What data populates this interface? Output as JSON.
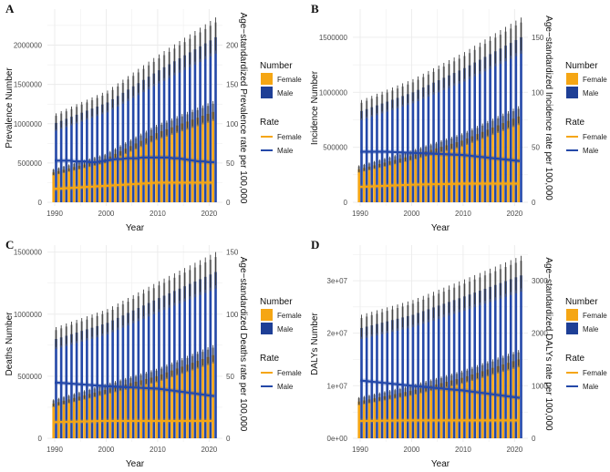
{
  "chart_data": [
    {
      "type": "bar",
      "panel_label": "A",
      "xlabel": "Year",
      "ylabel": "Prevalence Number",
      "ylabel_right": "Age−standardized Prevalence rate per 100,000",
      "x": [
        1990,
        1991,
        1992,
        1993,
        1994,
        1995,
        1996,
        1997,
        1998,
        1999,
        2000,
        2001,
        2002,
        2003,
        2004,
        2005,
        2006,
        2007,
        2008,
        2009,
        2010,
        2011,
        2012,
        2013,
        2014,
        2015,
        2016,
        2017,
        2018,
        2019,
        2020,
        2021
      ],
      "x_ticks": [
        "1990",
        "2000",
        "2010",
        "2020"
      ],
      "ylim": [
        0,
        2400000
      ],
      "y_ticks": [
        0,
        500000,
        1000000,
        1500000,
        2000000
      ],
      "y_tick_labels": [
        "0",
        "500000",
        "1000000",
        "1500000",
        "2000000"
      ],
      "rate_scale": 10000,
      "y_right_ticks": [
        0,
        50,
        100,
        150,
        200
      ],
      "y_right_tick_labels": [
        "0",
        "50",
        "100",
        "150",
        "200"
      ],
      "number_series": [
        {
          "name": "Female",
          "values": [
            380000,
            397000,
            414000,
            431000,
            448000,
            465000,
            482000,
            499000,
            516000,
            533000,
            550000,
            583000,
            616000,
            649000,
            682000,
            715000,
            748000,
            781000,
            814000,
            847000,
            880000,
            905000,
            929000,
            954000,
            978000,
            1003000,
            1027000,
            1052000,
            1076000,
            1101000,
            1125000,
            1150000
          ]
        },
        {
          "name": "Male",
          "values": [
            1010000,
            1036000,
            1062000,
            1088000,
            1114000,
            1140000,
            1166000,
            1192000,
            1218000,
            1244000,
            1270000,
            1311000,
            1352000,
            1393000,
            1434000,
            1475000,
            1516000,
            1557000,
            1598000,
            1639000,
            1680000,
            1718000,
            1756000,
            1794000,
            1832000,
            1870000,
            1908000,
            1946000,
            1984000,
            2022000,
            2060000,
            2100000
          ]
        }
      ],
      "rate_series": [
        {
          "name": "Female",
          "values": [
            17,
            17.4,
            17.8,
            18.2,
            18.6,
            19,
            19.4,
            19.8,
            20.2,
            20.6,
            21,
            21.4,
            21.8,
            22.2,
            22.6,
            23,
            23.4,
            23.8,
            24.2,
            24.6,
            25,
            25,
            25,
            25,
            25,
            25,
            25,
            25,
            25,
            25,
            25,
            25
          ]
        },
        {
          "name": "Male",
          "values": [
            53,
            53,
            53,
            53,
            52,
            52,
            52,
            51,
            51,
            52,
            53,
            54,
            55,
            55,
            56,
            56,
            56,
            57,
            57,
            57,
            57,
            57,
            57,
            56,
            56,
            55,
            54,
            53,
            52,
            52,
            51,
            51
          ]
        }
      ]
    },
    {
      "type": "bar",
      "panel_label": "B",
      "xlabel": "Year",
      "ylabel": "Incidence Number",
      "ylabel_right": "Age−standardized Incidence rate per 100,000",
      "x": [
        1990,
        1991,
        1992,
        1993,
        1994,
        1995,
        1996,
        1997,
        1998,
        1999,
        2000,
        2001,
        2002,
        2003,
        2004,
        2005,
        2006,
        2007,
        2008,
        2009,
        2010,
        2011,
        2012,
        2013,
        2014,
        2015,
        2016,
        2017,
        2018,
        2019,
        2020,
        2021
      ],
      "x_ticks": [
        "1990",
        "2000",
        "2010",
        "2020"
      ],
      "ylim": [
        0,
        1715000
      ],
      "y_ticks": [
        0,
        500000,
        1000000,
        1500000
      ],
      "y_tick_labels": [
        "0",
        "500000",
        "1000000",
        "1500000"
      ],
      "rate_scale": 10000,
      "y_right_ticks": [
        0,
        50,
        100,
        150
      ],
      "y_right_tick_labels": [
        "0",
        "50",
        "100",
        "150"
      ],
      "number_series": [
        {
          "name": "Female",
          "values": [
            300000,
            312000,
            324000,
            336000,
            348000,
            360000,
            372000,
            384000,
            396000,
            408000,
            420000,
            434000,
            448000,
            462000,
            476000,
            490000,
            504000,
            518000,
            532000,
            546000,
            560000,
            580000,
            600000,
            620000,
            640000,
            660000,
            680000,
            700000,
            720000,
            740000,
            760000,
            780000
          ]
        },
        {
          "name": "Male",
          "values": [
            830000,
            847000,
            864000,
            881000,
            898000,
            915000,
            932000,
            949000,
            966000,
            983000,
            1000000,
            1022000,
            1044000,
            1066000,
            1088000,
            1110000,
            1132000,
            1154000,
            1176000,
            1198000,
            1220000,
            1245000,
            1271000,
            1296000,
            1322000,
            1347000,
            1373000,
            1398000,
            1424000,
            1449000,
            1475000,
            1500000
          ]
        }
      ],
      "rate_series": [
        {
          "name": "Female",
          "values": [
            14,
            14.2,
            14.4,
            14.6,
            14.8,
            15,
            15.2,
            15.4,
            15.6,
            15.8,
            16,
            16.1,
            16.2,
            16.3,
            16.4,
            16.5,
            16.6,
            16.7,
            16.8,
            16.9,
            17,
            17,
            17,
            17,
            17,
            17,
            17,
            17,
            17,
            17,
            17,
            17
          ]
        },
        {
          "name": "Male",
          "values": [
            46,
            46,
            46,
            46,
            46,
            46,
            45.8,
            45.6,
            45.4,
            45.2,
            45,
            44.8,
            44.6,
            44.4,
            44.2,
            44,
            43.8,
            43.6,
            43.4,
            43.2,
            43,
            42.5,
            42,
            41.5,
            41,
            40.5,
            40,
            39.5,
            39,
            38.5,
            38,
            37.5
          ]
        }
      ]
    },
    {
      "type": "bar",
      "panel_label": "C",
      "xlabel": "Year",
      "ylabel": "Deaths Number",
      "ylabel_right": "Age−standardized Deaths rate per 100,000",
      "x": [
        1990,
        1991,
        1992,
        1993,
        1994,
        1995,
        1996,
        1997,
        1998,
        1999,
        2000,
        2001,
        2002,
        2003,
        2004,
        2005,
        2006,
        2007,
        2008,
        2009,
        2010,
        2011,
        2012,
        2013,
        2014,
        2015,
        2016,
        2017,
        2018,
        2019,
        2020,
        2021
      ],
      "x_ticks": [
        "1990",
        "2000",
        "2010",
        "2020"
      ],
      "ylim": [
        0,
        1520000
      ],
      "y_ticks": [
        0,
        500000,
        1000000,
        1500000
      ],
      "y_tick_labels": [
        "0",
        "500000",
        "1000000",
        "1500000"
      ],
      "rate_scale": 10000,
      "y_right_ticks": [
        0,
        50,
        100,
        150
      ],
      "y_right_tick_labels": [
        "0",
        "50",
        "100",
        "150"
      ],
      "number_series": [
        {
          "name": "Female",
          "values": [
            280000,
            291000,
            302000,
            313000,
            324000,
            335000,
            346000,
            357000,
            368000,
            379000,
            390000,
            401000,
            412000,
            423000,
            434000,
            445000,
            456000,
            467000,
            478000,
            489000,
            500000,
            515000,
            531000,
            546000,
            562000,
            577000,
            593000,
            608000,
            624000,
            639000,
            655000,
            670000
          ]
        },
        {
          "name": "Male",
          "values": [
            800000,
            813000,
            826000,
            839000,
            852000,
            865000,
            878000,
            891000,
            904000,
            917000,
            930000,
            950000,
            970000,
            990000,
            1010000,
            1030000,
            1050000,
            1070000,
            1090000,
            1110000,
            1130000,
            1149000,
            1168000,
            1187000,
            1206000,
            1225000,
            1244000,
            1263000,
            1282000,
            1301000,
            1320000,
            1340000
          ]
        }
      ],
      "rate_series": [
        {
          "name": "Female",
          "values": [
            13,
            13.1,
            13.2,
            13.3,
            13.4,
            13.5,
            13.6,
            13.7,
            13.8,
            13.9,
            14,
            14,
            14,
            14,
            14,
            14,
            14,
            14,
            14,
            14,
            14,
            14,
            14,
            14,
            14,
            14,
            14,
            14,
            14,
            14,
            14,
            14
          ]
        },
        {
          "name": "Male",
          "values": [
            45,
            44.7,
            44.4,
            44.1,
            43.8,
            43.5,
            43.2,
            42.9,
            42.6,
            42.3,
            42,
            41.8,
            41.6,
            41.4,
            41.2,
            41,
            40.8,
            40.6,
            40.4,
            40.2,
            40,
            39.5,
            38.9,
            38.4,
            37.8,
            37.3,
            36.7,
            36.2,
            35.6,
            35.1,
            34.5,
            34
          ]
        }
      ]
    },
    {
      "type": "bar",
      "panel_label": "D",
      "xlabel": "Year",
      "ylabel": "DALYs Number",
      "ylabel_right": "Age−standardized DALYs rate per 100,000",
      "x": [
        1990,
        1991,
        1992,
        1993,
        1994,
        1995,
        1996,
        1997,
        1998,
        1999,
        2000,
        2001,
        2002,
        2003,
        2004,
        2005,
        2006,
        2007,
        2008,
        2009,
        2010,
        2011,
        2012,
        2013,
        2014,
        2015,
        2016,
        2017,
        2018,
        2019,
        2020,
        2021
      ],
      "x_ticks": [
        "1990",
        "2000",
        "2010",
        "2020"
      ],
      "ylim": [
        0,
        35900000
      ],
      "y_ticks": [
        0,
        10000000,
        20000000,
        30000000
      ],
      "y_tick_labels": [
        "0e+00",
        "1e+07",
        "2e+07",
        "3e+07"
      ],
      "rate_scale": 10000,
      "y_right_ticks": [
        0,
        1000,
        2000,
        3000
      ],
      "y_right_tick_labels": [
        "0",
        "1000",
        "2000",
        "3000"
      ],
      "number_series": [
        {
          "name": "Female",
          "values": [
            7000000,
            7200000,
            7400000,
            7600000,
            7800000,
            8000000,
            8200000,
            8400000,
            8600000,
            8800000,
            9000000,
            9250000,
            9500000,
            9750000,
            10000000,
            10250000,
            10500000,
            10750000,
            11000000,
            11250000,
            11500000,
            11820000,
            12140000,
            12450000,
            12770000,
            13090000,
            13410000,
            13730000,
            14050000,
            14360000,
            14680000,
            15000000
          ]
        },
        {
          "name": "Male",
          "values": [
            21000000,
            21250000,
            21500000,
            21750000,
            22000000,
            22250000,
            22500000,
            22750000,
            23000000,
            23250000,
            23500000,
            23850000,
            24200000,
            24550000,
            24900000,
            25250000,
            25600000,
            25950000,
            26300000,
            26650000,
            27000000,
            27360000,
            27730000,
            28090000,
            28450000,
            28820000,
            29180000,
            29550000,
            29910000,
            30270000,
            30640000,
            31000000
          ]
        }
      ],
      "rate_series": [
        {
          "name": "Female",
          "values": [
            330,
            331,
            332,
            333,
            334,
            335,
            336,
            337,
            338,
            339,
            340,
            340,
            340,
            340,
            340,
            340,
            340,
            340,
            340,
            340,
            340,
            340,
            340,
            340,
            340,
            340,
            340,
            340,
            340,
            340,
            340,
            340
          ]
        },
        {
          "name": "Male",
          "values": [
            1100,
            1090,
            1080,
            1070,
            1060,
            1050,
            1040,
            1030,
            1020,
            1010,
            1000,
            991,
            982,
            973,
            964,
            955,
            946,
            937,
            928,
            919,
            910,
            897,
            885,
            872,
            859,
            846,
            834,
            821,
            808,
            796,
            783,
            770
          ]
        }
      ]
    }
  ],
  "legend": {
    "number_title": "Number",
    "rate_title": "Rate",
    "female_label": "Female",
    "male_label": "Male",
    "legend_position": "right"
  },
  "colors": {
    "female": "#F5A614",
    "male": "#2448A8",
    "male_legend": "#1E3F96",
    "error": "#2b2b2b",
    "grid": "#ebebeb"
  }
}
